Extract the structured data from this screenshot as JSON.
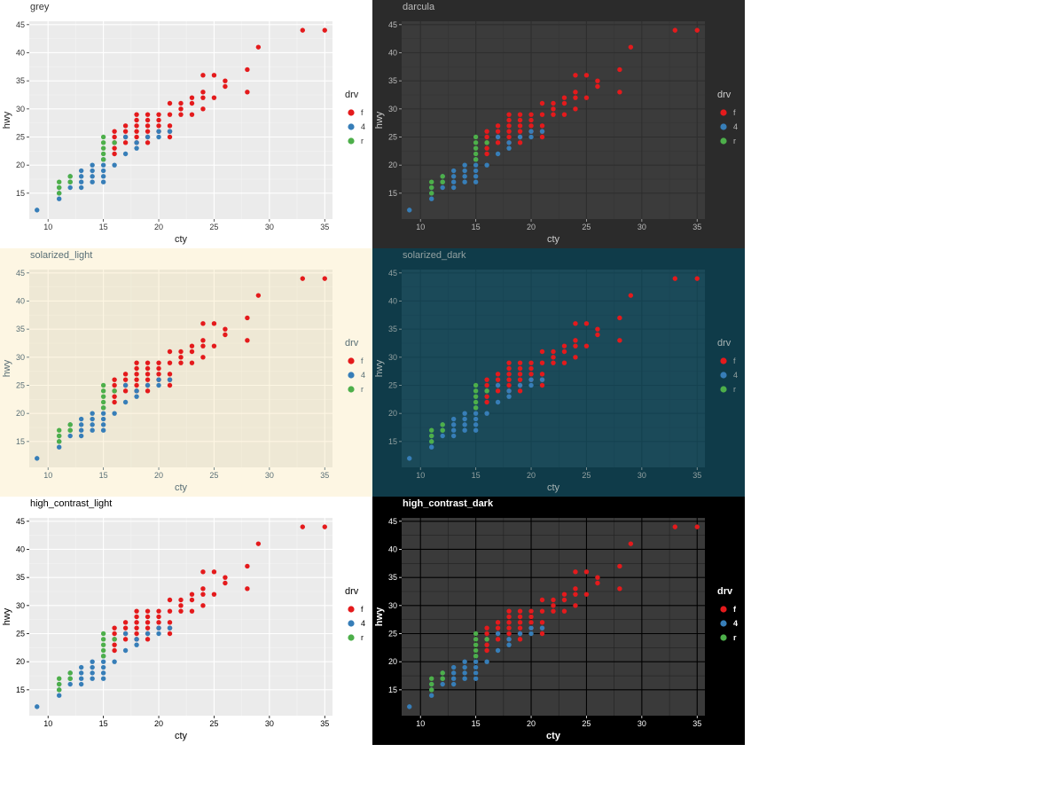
{
  "page": {
    "background": "#ffffff"
  },
  "chart_data": [
    {
      "type": "scatter",
      "title": "grey",
      "xlabel": "cty",
      "ylabel": "hwy",
      "xlim": [
        8.3,
        35.7
      ],
      "ylim": [
        10.4,
        45.6
      ],
      "x_ticks": [
        10,
        15,
        20,
        25,
        30,
        35
      ],
      "y_ticks": [
        15,
        20,
        25,
        30,
        35,
        40,
        45
      ],
      "legend": {
        "title": "drv",
        "placement": "right",
        "entries": [
          "f",
          "4",
          "r"
        ]
      },
      "theme": {
        "background": "#ffffff",
        "panel": "#ebebeb",
        "grid_major": "#ffffff",
        "grid_minor": "#f4f4f4",
        "text": "#333333",
        "axis_title": "#222222",
        "title_text": "#333333",
        "title_bold": false
      }
    },
    {
      "type": "scatter",
      "title": "darcula",
      "xlabel": "cty",
      "ylabel": "hwy",
      "xlim": [
        8.3,
        35.7
      ],
      "ylim": [
        10.4,
        45.6
      ],
      "x_ticks": [
        10,
        15,
        20,
        25,
        30,
        35
      ],
      "y_ticks": [
        15,
        20,
        25,
        30,
        35,
        40,
        45
      ],
      "legend": {
        "title": "drv",
        "placement": "right",
        "entries": [
          "f",
          "4",
          "r"
        ]
      },
      "theme": {
        "background": "#2b2b2b",
        "panel": "#3b3b3b",
        "grid_major": "#2e2e2e",
        "grid_minor": "#353535",
        "text": "#bbbbbb",
        "axis_title": "#cccccc",
        "title_text": "#bbbbbb",
        "title_bold": false
      }
    },
    {
      "type": "scatter",
      "title": "solarized_light",
      "xlabel": "cty",
      "ylabel": "hwy",
      "xlim": [
        8.3,
        35.7
      ],
      "ylim": [
        10.4,
        45.6
      ],
      "x_ticks": [
        10,
        15,
        20,
        25,
        30,
        35
      ],
      "y_ticks": [
        15,
        20,
        25,
        30,
        35,
        40,
        45
      ],
      "legend": {
        "title": "drv",
        "placement": "right",
        "entries": [
          "f",
          "4",
          "r"
        ]
      },
      "theme": {
        "background": "#fdf6e3",
        "panel": "#eee8d5",
        "grid_major": "#fdf6e3",
        "grid_minor": "#f4eedc",
        "text": "#586e75",
        "axis_title": "#586e75",
        "title_text": "#586e75",
        "title_bold": false
      }
    },
    {
      "type": "scatter",
      "title": "solarized_dark",
      "xlabel": "cty",
      "ylabel": "hwy",
      "xlim": [
        8.3,
        35.7
      ],
      "ylim": [
        10.4,
        45.6
      ],
      "x_ticks": [
        10,
        15,
        20,
        25,
        30,
        35
      ],
      "y_ticks": [
        15,
        20,
        25,
        30,
        35,
        40,
        45
      ],
      "legend": {
        "title": "drv",
        "placement": "right",
        "entries": [
          "f",
          "4",
          "r"
        ]
      },
      "theme": {
        "background": "#0f3b49",
        "panel": "#1b4a59",
        "grid_major": "#154250",
        "grid_minor": "#184555",
        "text": "#93a1a1",
        "axis_title": "#a8b4b4",
        "title_text": "#93a1a1",
        "title_bold": false
      }
    },
    {
      "type": "scatter",
      "title": "high_contrast_light",
      "xlabel": "cty",
      "ylabel": "hwy",
      "xlim": [
        8.3,
        35.7
      ],
      "ylim": [
        10.4,
        45.6
      ],
      "x_ticks": [
        10,
        15,
        20,
        25,
        30,
        35
      ],
      "y_ticks": [
        15,
        20,
        25,
        30,
        35,
        40,
        45
      ],
      "legend": {
        "title": "drv",
        "placement": "right",
        "entries": [
          "f",
          "4",
          "r"
        ]
      },
      "theme": {
        "background": "#ffffff",
        "panel": "#ebebeb",
        "grid_major": "#ffffff",
        "grid_minor": "#f4f4f4",
        "text": "#000000",
        "axis_title": "#000000",
        "title_text": "#000000",
        "title_bold": false
      }
    },
    {
      "type": "scatter",
      "title": "high_contrast_dark",
      "xlabel": "cty",
      "ylabel": "hwy",
      "xlim": [
        8.3,
        35.7
      ],
      "ylim": [
        10.4,
        45.6
      ],
      "x_ticks": [
        10,
        15,
        20,
        25,
        30,
        35
      ],
      "y_ticks": [
        15,
        20,
        25,
        30,
        35,
        40,
        45
      ],
      "legend": {
        "title": "drv",
        "placement": "right",
        "entries": [
          "f",
          "4",
          "r"
        ]
      },
      "theme": {
        "background": "#000000",
        "panel": "#3a3a3a",
        "grid_major": "#000000",
        "grid_minor": "#222222",
        "text": "#ffffff",
        "axis_title": "#ffffff",
        "title_text": "#ffffff",
        "title_bold": true
      }
    }
  ],
  "series": [
    {
      "name": "f",
      "color": "#e41a1c",
      "points": [
        [
          16,
          23
        ],
        [
          16,
          24
        ],
        [
          16,
          25
        ],
        [
          16,
          26
        ],
        [
          16,
          22
        ],
        [
          17,
          24
        ],
        [
          17,
          25
        ],
        [
          17,
          26
        ],
        [
          17,
          27
        ],
        [
          18,
          24
        ],
        [
          18,
          25
        ],
        [
          18,
          26
        ],
        [
          18,
          27
        ],
        [
          18,
          28
        ],
        [
          18,
          29
        ],
        [
          19,
          24
        ],
        [
          19,
          25
        ],
        [
          19,
          26
        ],
        [
          19,
          27
        ],
        [
          19,
          28
        ],
        [
          19,
          29
        ],
        [
          20,
          26
        ],
        [
          20,
          27
        ],
        [
          20,
          28
        ],
        [
          20,
          29
        ],
        [
          21,
          25
        ],
        [
          21,
          26
        ],
        [
          21,
          27
        ],
        [
          21,
          29
        ],
        [
          21,
          31
        ],
        [
          22,
          29
        ],
        [
          22,
          30
        ],
        [
          22,
          31
        ],
        [
          23,
          29
        ],
        [
          23,
          31
        ],
        [
          23,
          32
        ],
        [
          24,
          30
        ],
        [
          24,
          32
        ],
        [
          24,
          33
        ],
        [
          24,
          36
        ],
        [
          25,
          32
        ],
        [
          25,
          36
        ],
        [
          26,
          34
        ],
        [
          26,
          35
        ],
        [
          28,
          33
        ],
        [
          28,
          37
        ],
        [
          29,
          41
        ],
        [
          33,
          44
        ],
        [
          35,
          44
        ]
      ]
    },
    {
      "name": "4",
      "color": "#377eb8",
      "points": [
        [
          9,
          12
        ],
        [
          11,
          14
        ],
        [
          11,
          15
        ],
        [
          11,
          16
        ],
        [
          12,
          16
        ],
        [
          12,
          17
        ],
        [
          12,
          18
        ],
        [
          13,
          16
        ],
        [
          13,
          17
        ],
        [
          13,
          18
        ],
        [
          13,
          19
        ],
        [
          14,
          17
        ],
        [
          14,
          18
        ],
        [
          14,
          19
        ],
        [
          14,
          20
        ],
        [
          15,
          17
        ],
        [
          15,
          18
        ],
        [
          15,
          19
        ],
        [
          15,
          20
        ],
        [
          15,
          21
        ],
        [
          16,
          20
        ],
        [
          17,
          22
        ],
        [
          17,
          25
        ],
        [
          18,
          23
        ],
        [
          18,
          24
        ],
        [
          19,
          25
        ],
        [
          20,
          25
        ],
        [
          20,
          26
        ],
        [
          21,
          26
        ]
      ]
    },
    {
      "name": "r",
      "color": "#4daf4a",
      "points": [
        [
          11,
          15
        ],
        [
          11,
          16
        ],
        [
          11,
          17
        ],
        [
          12,
          17
        ],
        [
          12,
          18
        ],
        [
          15,
          21
        ],
        [
          15,
          22
        ],
        [
          15,
          23
        ],
        [
          15,
          24
        ],
        [
          15,
          25
        ],
        [
          16,
          24
        ]
      ]
    }
  ]
}
